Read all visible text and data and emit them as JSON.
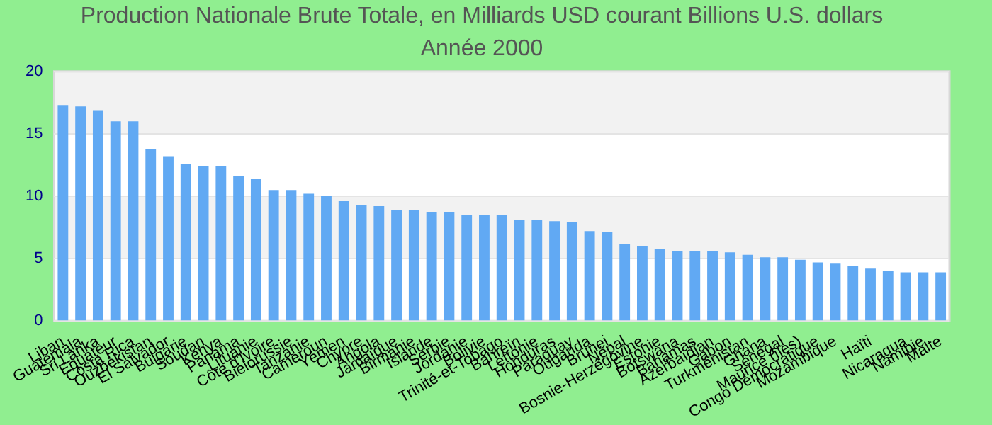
{
  "chart_data": {
    "type": "bar",
    "title": "Production Nationale Brute Totale, en Milliards USD courant Billions U.S. dollars",
    "subtitle": "Année 2000",
    "categories": [
      "Liban",
      "Guatemala",
      "Sri Lanka",
      "Equateur",
      "Costa Rica",
      "Ouzbékistan",
      "El Salvador",
      "Bulgarie",
      "Soudan",
      "Kenya",
      "Panama",
      "Lituanie",
      "Côte d'Ivoire",
      "Biélorussie",
      "Tanzanie",
      "Cameroun",
      "Yémen",
      "Chypre",
      "Angola",
      "Jamaïque",
      "Birmanie",
      "Islande",
      "Serbie",
      "Jordanie",
      "Bolivie",
      "Trinité-et-Tobago",
      "Bahreïn",
      "Lettonie",
      "Honduras",
      "Paraguay",
      "Ouganda",
      "Brunei",
      "Népal",
      "Bosnie-Herzégovine",
      "Estonie",
      "Botswana",
      "Bahamas",
      "Azerbaïdjan",
      "Gabon",
      "Turkménistan",
      "Ghana",
      "Sénégal",
      "Maurice (îles)",
      "Congo Démocratique",
      "Mozambique",
      null,
      "Haïti",
      null,
      "Nicaragua",
      "Namibie",
      "Malte"
    ],
    "values": [
      17.3,
      17.2,
      16.9,
      16.0,
      16.0,
      13.8,
      13.2,
      12.6,
      12.4,
      12.4,
      11.6,
      11.4,
      10.5,
      10.5,
      10.2,
      10.0,
      9.6,
      9.3,
      9.2,
      8.9,
      8.9,
      8.7,
      8.7,
      8.5,
      8.5,
      8.5,
      8.1,
      8.1,
      8.0,
      7.9,
      7.2,
      7.1,
      6.2,
      6.0,
      5.8,
      5.6,
      5.6,
      5.6,
      5.5,
      5.3,
      5.1,
      5.1,
      4.9,
      4.7,
      4.6,
      4.4,
      4.2,
      4.0,
      3.9,
      3.9,
      3.9
    ],
    "color": "#61a9f3",
    "ylim": [
      0,
      20
    ],
    "yticks": [
      0,
      5,
      10,
      15,
      20
    ],
    "grid": "y"
  }
}
